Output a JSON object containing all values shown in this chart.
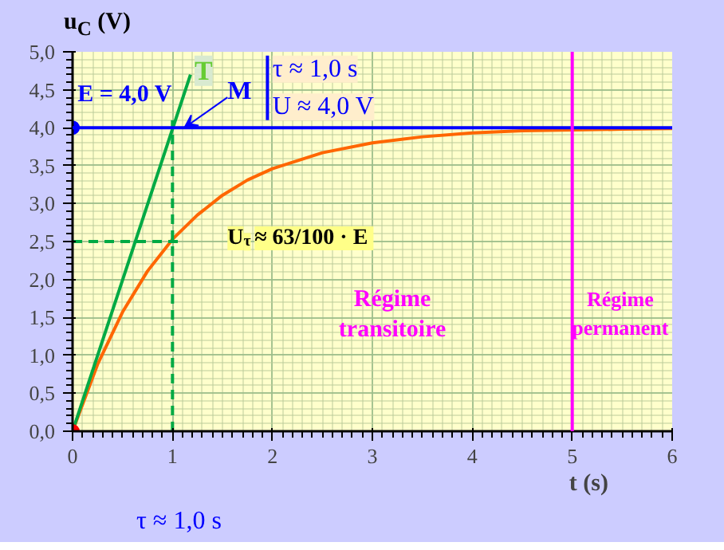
{
  "chart_data": {
    "type": "line",
    "xlabel": "t (s)",
    "ylabel": "u$_{C}$ (V)",
    "xlim": [
      0,
      6
    ],
    "ylim": [
      0,
      5
    ],
    "xticks": [
      0,
      1,
      2,
      3,
      4,
      5,
      6
    ],
    "yticks": [
      {
        "value": 0,
        "label": "0,0"
      },
      {
        "value": 0.5,
        "label": "0,5"
      },
      {
        "value": 1,
        "label": "1,0"
      },
      {
        "value": 1.5,
        "label": "1,5"
      },
      {
        "value": 2,
        "label": "2,0"
      },
      {
        "value": 2.5,
        "label": "2,5"
      },
      {
        "value": 3,
        "label": "3,0"
      },
      {
        "value": 3.5,
        "label": "3,5"
      },
      {
        "value": 4,
        "label": "4,0"
      },
      {
        "value": 4.5,
        "label": "4,5"
      },
      {
        "value": 5,
        "label": "5,0"
      }
    ],
    "grid": true,
    "series": [
      {
        "color": "#ff6600",
        "x": [
          0,
          0.25,
          0.5,
          0.75,
          1,
          1.25,
          1.5,
          1.75,
          2,
          2.5,
          3,
          3.5,
          4,
          4.5,
          5,
          5.5,
          6
        ],
        "values": [
          0,
          0.88,
          1.57,
          2.11,
          2.53,
          2.85,
          3.11,
          3.31,
          3.46,
          3.67,
          3.8,
          3.88,
          3.93,
          3.96,
          3.97,
          3.98,
          3.99
        ]
      },
      {
        "color": "#00aa44",
        "x": [
          0,
          1.18
        ],
        "values": [
          0,
          4.7
        ]
      },
      {
        "color": "#00aa44",
        "line_style": "dashed",
        "x": [
          1,
          1
        ],
        "values": [
          0,
          4.1
        ]
      },
      {
        "color": "#00aa44",
        "line_style": "dashed",
        "x": [
          0,
          1.1
        ],
        "values": [
          2.5,
          2.5
        ]
      },
      {
        "type": "scatter",
        "marker": "circle",
        "x": [
          0,
          0
        ],
        "values": [
          0,
          4
        ],
        "colors": [
          "#ff0000",
          "#0000ff"
        ]
      }
    ],
    "ref_lines": [
      {
        "axis": "y",
        "value": 4,
        "color": "#0000ff"
      },
      {
        "axis": "x",
        "value": 5,
        "color": "#ff00ff"
      }
    ],
    "annotations": [
      "E = 4,0 V",
      "T",
      {
        "text": "M",
        "x": 1,
        "y": 4
      },
      "τ ≈ 1,0 s",
      "U ≈ 4,0 V",
      "U$_{τ}$ ≈ 63/100 · E",
      "Régime transitoire",
      "Régime permanent",
      "τ ≈ 1,0 s"
    ]
  }
}
